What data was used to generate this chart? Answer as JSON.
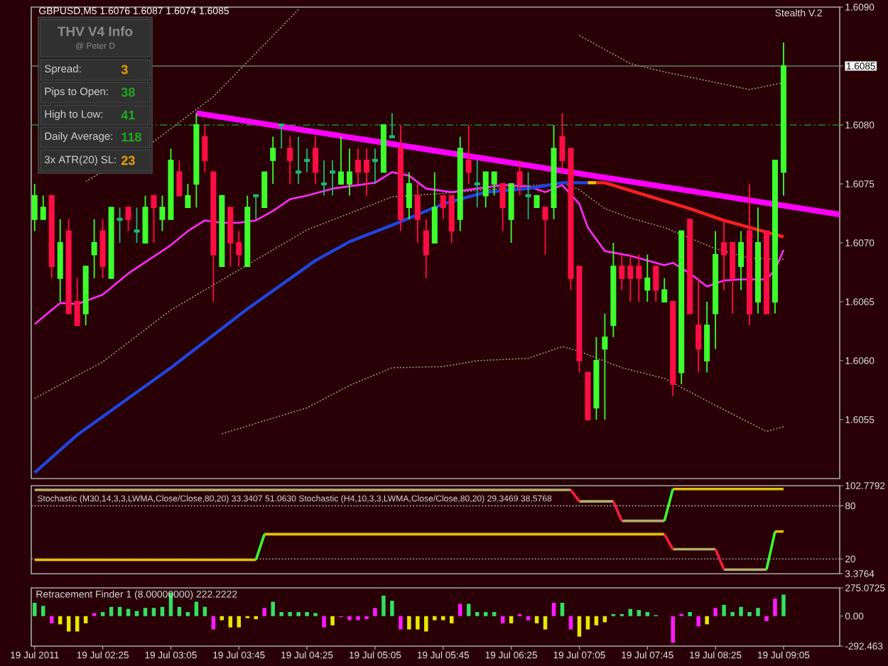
{
  "chart_data": [
    {
      "type": "candlestick",
      "title": "GBPUSD,M5 1.6076 1.6087 1.6074 1.6085",
      "x": [
        "2011-07-19T01:45",
        "2011-07-19T01:50",
        "2011-07-19T01:55",
        "2011-07-19T02:00",
        "2011-07-19T02:05",
        "2011-07-19T02:10",
        "2011-07-19T02:15",
        "2011-07-19T02:20",
        "2011-07-19T02:25",
        "2011-07-19T02:30",
        "2011-07-19T02:35",
        "2011-07-19T02:40",
        "2011-07-19T02:45",
        "2011-07-19T02:50",
        "2011-07-19T02:55",
        "2011-07-19T03:00",
        "2011-07-19T03:05",
        "2011-07-19T03:10",
        "2011-07-19T03:15",
        "2011-07-19T03:20",
        "2011-07-19T03:25",
        "2011-07-19T03:30",
        "2011-07-19T03:35",
        "2011-07-19T03:40",
        "2011-07-19T03:45",
        "2011-07-19T03:50",
        "2011-07-19T03:55",
        "2011-07-19T04:00",
        "2011-07-19T04:05",
        "2011-07-19T04:10",
        "2011-07-19T04:15",
        "2011-07-19T04:20",
        "2011-07-19T04:25",
        "2011-07-19T04:30",
        "2011-07-19T04:35",
        "2011-07-19T04:40",
        "2011-07-19T04:45",
        "2011-07-19T04:50",
        "2011-07-19T04:55",
        "2011-07-19T05:00",
        "2011-07-19T05:05",
        "2011-07-19T05:10",
        "2011-07-19T05:15",
        "2011-07-19T05:20",
        "2011-07-19T05:25",
        "2011-07-19T05:30",
        "2011-07-19T05:35",
        "2011-07-19T05:40",
        "2011-07-19T05:45",
        "2011-07-19T05:50",
        "2011-07-19T05:55",
        "2011-07-19T06:00",
        "2011-07-19T06:05",
        "2011-07-19T06:10",
        "2011-07-19T06:15",
        "2011-07-19T06:20",
        "2011-07-19T06:25",
        "2011-07-19T06:30",
        "2011-07-19T06:35",
        "2011-07-19T06:40",
        "2011-07-19T06:45",
        "2011-07-19T06:50",
        "2011-07-19T06:55",
        "2011-07-19T07:00",
        "2011-07-19T07:05",
        "2011-07-19T07:10",
        "2011-07-19T07:15",
        "2011-07-19T07:20",
        "2011-07-19T07:25",
        "2011-07-19T07:30",
        "2011-07-19T07:35",
        "2011-07-19T07:40",
        "2011-07-19T07:45",
        "2011-07-19T07:50",
        "2011-07-19T07:55",
        "2011-07-19T08:00",
        "2011-07-19T08:05",
        "2011-07-19T08:10",
        "2011-07-19T08:15",
        "2011-07-19T08:20",
        "2011-07-19T08:25",
        "2011-07-19T08:30",
        "2011-07-19T08:35",
        "2011-07-19T08:40",
        "2011-07-19T08:45",
        "2011-07-19T08:50",
        "2011-07-19T08:55",
        "2011-07-19T09:00",
        "2011-07-19T09:05"
      ],
      "ohlc": [
        [
          1.6072,
          1.6075,
          1.6071,
          1.6074
        ],
        [
          1.6072,
          1.6074,
          1.6072,
          1.6073
        ],
        [
          1.6074,
          1.6074,
          1.6067,
          1.6068
        ],
        [
          1.6067,
          1.6072,
          1.6065,
          1.607
        ],
        [
          1.6071,
          1.6072,
          1.6064,
          1.6064
        ],
        [
          1.6065,
          1.6067,
          1.6063,
          1.6063
        ],
        [
          1.6064,
          1.6068,
          1.6063,
          1.6068
        ],
        [
          1.6069,
          1.6072,
          1.6067,
          1.607
        ],
        [
          1.6071,
          1.6072,
          1.6067,
          1.6068
        ],
        [
          1.6067,
          1.6073,
          1.6067,
          1.6073
        ],
        [
          1.6072,
          1.6073,
          1.607,
          1.6072
        ],
        [
          1.6073,
          1.6073,
          1.6071,
          1.6072
        ],
        [
          1.6071,
          1.6073,
          1.607,
          1.6071
        ],
        [
          1.607,
          1.6074,
          1.607,
          1.6073
        ],
        [
          1.6074,
          1.6074,
          1.607,
          1.6073
        ],
        [
          1.6072,
          1.6074,
          1.6071,
          1.6073
        ],
        [
          1.6072,
          1.6078,
          1.6072,
          1.6077
        ],
        [
          1.6076,
          1.6077,
          1.6074,
          1.6074
        ],
        [
          1.6073,
          1.6075,
          1.6073,
          1.6074
        ],
        [
          1.6075,
          1.6081,
          1.6073,
          1.608
        ],
        [
          1.6079,
          1.608,
          1.6076,
          1.6077
        ],
        [
          1.6076,
          1.6076,
          1.6065,
          1.6069
        ],
        [
          1.6068,
          1.6074,
          1.6068,
          1.6074
        ],
        [
          1.6073,
          1.6073,
          1.6068,
          1.607
        ],
        [
          1.607,
          1.6071,
          1.6068,
          1.6069
        ],
        [
          1.6068,
          1.6074,
          1.6068,
          1.6073
        ],
        [
          1.6074,
          1.6074,
          1.6072,
          1.6074
        ],
        [
          1.6073,
          1.6076,
          1.6073,
          1.6076
        ],
        [
          1.6077,
          1.6079,
          1.6075,
          1.6078
        ],
        [
          1.608,
          1.608,
          1.6078,
          1.608
        ],
        [
          1.6078,
          1.6079,
          1.6075,
          1.6077
        ],
        [
          1.6076,
          1.6079,
          1.6075,
          1.6076
        ],
        [
          1.6077,
          1.6078,
          1.6076,
          1.6077
        ],
        [
          1.6078,
          1.6079,
          1.6075,
          1.6076
        ],
        [
          1.6075,
          1.6077,
          1.6074,
          1.6075
        ],
        [
          1.6076,
          1.6077,
          1.6074,
          1.6076
        ],
        [
          1.6075,
          1.6079,
          1.6075,
          1.6076
        ],
        [
          1.6075,
          1.6078,
          1.6074,
          1.6076
        ],
        [
          1.6077,
          1.6078,
          1.6075,
          1.6076
        ],
        [
          1.6077,
          1.6078,
          1.6074,
          1.6076
        ],
        [
          1.6077,
          1.6078,
          1.6075,
          1.6077
        ],
        [
          1.6076,
          1.608,
          1.6076,
          1.608
        ],
        [
          1.6079,
          1.6081,
          1.6079,
          1.6079
        ],
        [
          1.6078,
          1.608,
          1.6071,
          1.6072
        ],
        [
          1.6073,
          1.6076,
          1.6072,
          1.6075
        ],
        [
          1.6074,
          1.6075,
          1.607,
          1.6072
        ],
        [
          1.6071,
          1.6072,
          1.6067,
          1.6069
        ],
        [
          1.607,
          1.6076,
          1.607,
          1.6073
        ],
        [
          1.6074,
          1.6074,
          1.6072,
          1.6073
        ],
        [
          1.6074,
          1.6074,
          1.607,
          1.6071
        ],
        [
          1.6072,
          1.6079,
          1.6071,
          1.6078
        ],
        [
          1.6077,
          1.608,
          1.6075,
          1.6076
        ],
        [
          1.6075,
          1.6077,
          1.6073,
          1.6075
        ],
        [
          1.6074,
          1.6076,
          1.6073,
          1.6076
        ],
        [
          1.6075,
          1.6076,
          1.6074,
          1.6076
        ],
        [
          1.6075,
          1.6075,
          1.6071,
          1.6073
        ],
        [
          1.6072,
          1.6075,
          1.607,
          1.6075
        ],
        [
          1.6076,
          1.6077,
          1.6074,
          1.6075
        ],
        [
          1.6074,
          1.6076,
          1.6072,
          1.6074
        ],
        [
          1.6073,
          1.6074,
          1.6073,
          1.6074
        ],
        [
          1.6073,
          1.6073,
          1.6069,
          1.6072
        ],
        [
          1.6073,
          1.608,
          1.6072,
          1.6078
        ],
        [
          1.6079,
          1.6081,
          1.6076,
          1.6077
        ],
        [
          1.6078,
          1.6078,
          1.6066,
          1.6067
        ],
        [
          1.6068,
          1.6068,
          1.6059,
          1.606
        ],
        [
          1.6059,
          1.6059,
          1.6055,
          1.6055
        ],
        [
          1.6056,
          1.6062,
          1.6055,
          1.606
        ],
        [
          1.6061,
          1.6064,
          1.6055,
          1.6062
        ],
        [
          1.6063,
          1.607,
          1.6062,
          1.6068
        ],
        [
          1.6068,
          1.6069,
          1.6066,
          1.6067
        ],
        [
          1.6068,
          1.6069,
          1.6065,
          1.6067
        ],
        [
          1.6068,
          1.6069,
          1.6065,
          1.6067
        ],
        [
          1.6066,
          1.6069,
          1.6065,
          1.6067
        ],
        [
          1.6068,
          1.6068,
          1.6065,
          1.6066
        ],
        [
          1.6065,
          1.6067,
          1.6065,
          1.6066
        ],
        [
          1.6065,
          1.6065,
          1.6057,
          1.6058
        ],
        [
          1.6059,
          1.6071,
          1.6058,
          1.6071
        ],
        [
          1.6072,
          1.6072,
          1.6064,
          1.6064
        ],
        [
          1.6063,
          1.6067,
          1.6059,
          1.6061
        ],
        [
          1.606,
          1.6065,
          1.6059,
          1.6063
        ],
        [
          1.6064,
          1.6071,
          1.6061,
          1.6069
        ],
        [
          1.607,
          1.6072,
          1.6066,
          1.6069
        ],
        [
          1.607,
          1.607,
          1.6064,
          1.6067
        ],
        [
          1.6068,
          1.6071,
          1.6066,
          1.607
        ],
        [
          1.6071,
          1.6075,
          1.6063,
          1.6064
        ],
        [
          1.6065,
          1.6073,
          1.6064,
          1.607
        ],
        [
          1.6071,
          1.6071,
          1.6064,
          1.6064
        ],
        [
          1.6065,
          1.6077,
          1.6064,
          1.6077
        ],
        [
          1.6076,
          1.6087,
          1.6074,
          1.6085
        ]
      ],
      "colors": [
        "#3dff2e",
        "#3dff2e",
        "#ff0d45",
        "#3dff2e",
        "#ff0d45",
        "#ff0d45",
        "#3dff2e",
        "#3dff2e",
        "#ff0d45",
        "#3dff2e",
        "#1fb873",
        "#ff0d45",
        "#1fb873",
        "#3dff2e",
        "#ff0d45",
        "#3dff2e",
        "#3dff2e",
        "#ff0d45",
        "#3dff2e",
        "#3dff2e",
        "#ff0d45",
        "#ff0d45",
        "#3dff2e",
        "#ff0d45",
        "#ff0d45",
        "#3dff2e",
        "#1fb873",
        "#3dff2e",
        "#3dff2e",
        "#1fb873",
        "#ff0d45",
        "#1fb873",
        "#1fb873",
        "#ff0d45",
        "#1fb873",
        "#1fb873",
        "#3dff2e",
        "#3dff2e",
        "#ff0d45",
        "#ff0d45",
        "#1fb873",
        "#3dff2e",
        "#1fb873",
        "#ff0d45",
        "#3dff2e",
        "#ff0d45",
        "#ff0d45",
        "#3dff2e",
        "#ff0d45",
        "#ff0d45",
        "#3dff2e",
        "#ff0d45",
        "#1fb873",
        "#3dff2e",
        "#3dff2e",
        "#ff0d45",
        "#3dff2e",
        "#ff0d45",
        "#1fb873",
        "#3dff2e",
        "#ff0d45",
        "#3dff2e",
        "#ff0d45",
        "#ff0d45",
        "#ff0d45",
        "#ff0d45",
        "#3dff2e",
        "#3dff2e",
        "#3dff2e",
        "#ff0d45",
        "#ff0d45",
        "#ff0d45",
        "#3dff2e",
        "#ff0d45",
        "#3dff2e",
        "#ff0d45",
        "#3dff2e",
        "#ff0d45",
        "#ff0d45",
        "#3dff2e",
        "#3dff2e",
        "#ff0d45",
        "#ff0d45",
        "#3dff2e",
        "#ff0d45",
        "#3dff2e",
        "#ff0d45",
        "#3dff2e",
        "#3dff2e"
      ],
      "series": [
        {
          "type": "line",
          "color": "#9c9c6c",
          "line_style": "dotted",
          "x": [
            "2011-07-19T02:15",
            "2011-07-19T02:55",
            "2011-07-19T03:30",
            "2011-07-19T03:55",
            "2011-07-19T04:20"
          ],
          "values": [
            1.60752,
            1.60786,
            1.60824,
            1.60861,
            1.60898
          ]
        },
        {
          "type": "line",
          "color": "#9c9c6c",
          "line_style": "dotted",
          "x": [
            "2011-07-19T07:05",
            "2011-07-19T07:20",
            "2011-07-19T07:35",
            "2011-07-19T07:55",
            "2011-07-19T08:25",
            "2011-07-19T08:45",
            "2011-07-19T09:05"
          ],
          "values": [
            1.60876,
            1.60864,
            1.60852,
            1.60845,
            1.60836,
            1.6083,
            1.60836
          ]
        },
        {
          "type": "line",
          "color": "#9c9c6c",
          "line_style": "dotted",
          "x": [
            "2011-07-19T01:45",
            "2011-07-19T02:25",
            "2011-07-19T03:05",
            "2011-07-19T04:25",
            "2011-07-19T04:50",
            "2011-07-19T05:15",
            "2011-07-19T05:45",
            "2011-07-19T06:10",
            "2011-07-19T06:35",
            "2011-07-19T06:55",
            "2011-07-19T07:05",
            "2011-07-19T07:20",
            "2011-07-19T07:35",
            "2011-07-19T07:55",
            "2011-07-19T08:25",
            "2011-07-19T08:45",
            "2011-07-19T09:05"
          ],
          "values": [
            1.60568,
            1.60599,
            1.60643,
            1.60711,
            1.60725,
            1.60739,
            1.60742,
            1.60745,
            1.60748,
            1.60751,
            1.60745,
            1.60729,
            1.60721,
            1.60713,
            1.60695,
            1.60687,
            1.60686
          ]
        },
        {
          "type": "line",
          "color": "#9c9c6c",
          "line_style": "dotted",
          "x": [
            "2011-07-19T03:35",
            "2011-07-19T04:25",
            "2011-07-19T04:50",
            "2011-07-19T05:15",
            "2011-07-19T05:45",
            "2011-07-19T06:05",
            "2011-07-19T06:35",
            "2011-07-19T06:55",
            "2011-07-19T07:05",
            "2011-07-19T07:30",
            "2011-07-19T07:55",
            "2011-07-19T08:25",
            "2011-07-19T08:55",
            "2011-07-19T09:05"
          ],
          "values": [
            1.60538,
            1.6056,
            1.60579,
            1.60594,
            1.60595,
            1.606,
            1.60602,
            1.60612,
            1.60608,
            1.60594,
            1.60585,
            1.60562,
            1.6054,
            1.60544
          ]
        },
        {
          "type": "line",
          "color": "#ff2bff",
          "x": [
            "2011-07-19T01:45",
            "2011-07-19T02:00",
            "2011-07-19T02:10",
            "2011-07-19T02:25",
            "2011-07-19T02:40",
            "2011-07-19T03:05",
            "2011-07-19T03:15",
            "2011-07-19T03:25",
            "2011-07-19T03:35",
            "2011-07-19T03:45",
            "2011-07-19T03:55",
            "2011-07-19T04:05",
            "2011-07-19T04:15",
            "2011-07-19T04:25",
            "2011-07-19T04:40",
            "2011-07-19T05:05",
            "2011-07-19T05:15",
            "2011-07-19T05:25",
            "2011-07-19T05:35",
            "2011-07-19T05:50",
            "2011-07-19T06:05",
            "2011-07-19T06:20",
            "2011-07-19T06:35",
            "2011-07-19T06:45",
            "2011-07-19T06:55",
            "2011-07-19T07:05",
            "2011-07-19T07:10",
            "2011-07-19T07:20",
            "2011-07-19T07:35",
            "2011-07-19T07:55",
            "2011-07-19T08:00",
            "2011-07-19T08:10",
            "2011-07-19T08:20",
            "2011-07-19T08:30",
            "2011-07-19T08:40",
            "2011-07-19T08:55",
            "2011-07-19T09:00",
            "2011-07-19T09:05"
          ],
          "values": [
            1.60631,
            1.60649,
            1.60648,
            1.60656,
            1.60674,
            1.60698,
            1.6071,
            1.60719,
            1.60717,
            1.60717,
            1.60719,
            1.60727,
            1.60737,
            1.6074,
            1.60746,
            1.60751,
            1.6076,
            1.60757,
            1.60746,
            1.60743,
            1.60746,
            1.60749,
            1.60748,
            1.60743,
            1.60749,
            1.60733,
            1.60713,
            1.60693,
            1.60689,
            1.60681,
            1.60683,
            1.60674,
            1.60663,
            1.60668,
            1.60669,
            1.60669,
            1.60677,
            1.60694
          ]
        },
        {
          "type": "line",
          "color": "#2244dd",
          "x": [
            "2011-07-19T01:45",
            "2011-07-19T02:10",
            "2011-07-19T03:05",
            "2011-07-19T03:50",
            "2011-07-19T04:30",
            "2011-07-19T04:50",
            "2011-07-19T05:15",
            "2011-07-19T05:45",
            "2011-07-19T06:10",
            "2011-07-19T06:35",
            "2011-07-19T06:55",
            "2011-07-19T07:10"
          ],
          "values": [
            1.60505,
            1.60537,
            1.60594,
            1.60644,
            1.60685,
            1.60701,
            1.60715,
            1.60733,
            1.60743,
            1.60746,
            1.60751,
            1.60751
          ]
        },
        {
          "type": "line",
          "color": "#ffc000",
          "x": [
            "2011-07-19T07:10",
            "2011-07-19T07:15"
          ],
          "values": [
            1.60751,
            1.60751
          ]
        },
        {
          "type": "line",
          "color": "#ff1f1f",
          "x": [
            "2011-07-19T07:15",
            "2011-07-19T07:20",
            "2011-07-19T07:45",
            "2011-07-19T08:10",
            "2011-07-19T08:30",
            "2011-07-19T08:50",
            "2011-07-19T09:05"
          ],
          "values": [
            1.60751,
            1.60751,
            1.6074,
            1.60729,
            1.60719,
            1.60711,
            1.60705
          ]
        },
        {
          "type": "line",
          "color": "#ff00ff",
          "x": [
            "2011-07-19T03:20",
            "2011-07-19T09:38"
          ],
          "values": [
            1.6081,
            1.60724
          ]
        }
      ],
      "ref_lines": [
        {
          "axis": "y",
          "value": 1.6085,
          "color": "#6b7b6b"
        },
        {
          "axis": "y",
          "value": 1.608,
          "color": "#1f8a1f",
          "line_style": "dashed"
        }
      ],
      "annotations": [
        "THV V4 Info",
        "@ Peter D",
        "Spread:",
        "3",
        "Pips to Open:",
        "38",
        "High to Low:",
        "41",
        "Daily Average:",
        "118",
        "3x ATR(20) SL:",
        "23",
        "Stealth V.2"
      ],
      "xlim": [
        "2011-07-19T01:43",
        "2011-07-19T09:38"
      ],
      "ylim": [
        1.605,
        1.609
      ],
      "yticks": [
        {
          "value": 1.609,
          "label": "1.6090"
        },
        1.6085,
        {
          "value": 1.608,
          "label": "1.6080"
        },
        1.6075,
        {
          "value": 1.607,
          "label": "1.6070"
        },
        1.6065,
        {
          "value": 1.606,
          "label": "1.6060"
        },
        1.6055
      ],
      "tick_labels": "y"
    },
    {
      "type": "line",
      "title": "Stochastic (M30,14,3,3,LWMA,Close/Close,80,20) 33.3407 51.0630  Stochastic (H4,10,3,3,LWMA,Close/Close,80,20) 29.3469 38.5768",
      "series": [
        {
          "type": "line",
          "color": "#e8c000",
          "x": [
            "2011-07-19T01:45",
            "2011-07-19T03:55"
          ],
          "values": [
            19,
            19
          ]
        },
        {
          "type": "line",
          "color": "#e8c000",
          "x": [
            "2011-07-19T04:00",
            "2011-07-19T07:55"
          ],
          "values": [
            48,
            48
          ]
        },
        {
          "type": "line",
          "color": "#e8c000",
          "x": [
            "2011-07-19T08:00",
            "2011-07-19T09:05"
          ],
          "values": [
            99,
            99
          ]
        },
        {
          "type": "line",
          "color": "#e8c000",
          "x": [
            "2011-07-19T09:00",
            "2011-07-19T09:05"
          ],
          "values": [
            51,
            51
          ]
        },
        {
          "type": "line",
          "color": "#b4ac6a",
          "x": [
            "2011-07-19T01:45",
            "2011-07-19T07:00"
          ],
          "values": [
            98,
            98
          ]
        },
        {
          "type": "line",
          "color": "#b4ac6a",
          "x": [
            "2011-07-19T07:05",
            "2011-07-19T07:25"
          ],
          "values": [
            85,
            85
          ]
        },
        {
          "type": "line",
          "color": "#b4ac6a",
          "x": [
            "2011-07-19T07:30",
            "2011-07-19T07:55"
          ],
          "values": [
            63,
            63
          ]
        },
        {
          "type": "line",
          "color": "#b4ac6a",
          "x": [
            "2011-07-19T08:00",
            "2011-07-19T08:25"
          ],
          "values": [
            31,
            31
          ]
        },
        {
          "type": "line",
          "color": "#b4ac6a",
          "x": [
            "2011-07-19T08:30",
            "2011-07-19T08:55"
          ],
          "values": [
            8,
            8
          ]
        },
        {
          "type": "line",
          "color": "#3dff2e",
          "x": [
            "2011-07-19T03:55",
            "2011-07-19T04:00"
          ],
          "values": [
            19,
            48
          ]
        },
        {
          "type": "line",
          "color": "#3dff2e",
          "x": [
            "2011-07-19T07:55",
            "2011-07-19T08:00"
          ],
          "values": [
            63,
            99
          ]
        },
        {
          "type": "line",
          "color": "#3dff2e",
          "x": [
            "2011-07-19T08:55",
            "2011-07-19T09:00"
          ],
          "values": [
            8,
            51
          ]
        },
        {
          "type": "line",
          "color": "#ff1a40",
          "x": [
            "2011-07-19T07:00",
            "2011-07-19T07:05"
          ],
          "values": [
            98,
            85
          ]
        },
        {
          "type": "line",
          "color": "#ff1a40",
          "x": [
            "2011-07-19T07:25",
            "2011-07-19T07:30"
          ],
          "values": [
            85,
            63
          ]
        },
        {
          "type": "line",
          "color": "#ff1a40",
          "x": [
            "2011-07-19T07:55",
            "2011-07-19T08:00"
          ],
          "values": [
            48,
            31
          ]
        },
        {
          "type": "line",
          "color": "#ff1a40",
          "x": [
            "2011-07-19T08:25",
            "2011-07-19T08:30"
          ],
          "values": [
            31,
            8
          ]
        }
      ],
      "ref_lines": [
        {
          "axis": "y",
          "value": 80,
          "color": "#9a9a9a",
          "line_style": "dotted"
        },
        {
          "axis": "y",
          "value": 20,
          "color": "#9a9a9a",
          "line_style": "dotted"
        }
      ],
      "xlim": [
        "2011-07-19T01:43",
        "2011-07-19T09:38"
      ],
      "ylim": [
        3.3764,
        102.7792
      ],
      "yticks": [
        102.7792,
        80,
        20,
        3.3764
      ],
      "tick_labels": "y"
    },
    {
      "type": "bar",
      "title": "Retracement Finder 1 (8.00000000) 222.2222",
      "x": [
        "2011-07-19T01:45",
        "2011-07-19T01:50",
        "2011-07-19T01:55",
        "2011-07-19T02:00",
        "2011-07-19T02:05",
        "2011-07-19T02:10",
        "2011-07-19T02:15",
        "2011-07-19T02:20",
        "2011-07-19T02:25",
        "2011-07-19T02:30",
        "2011-07-19T02:35",
        "2011-07-19T02:40",
        "2011-07-19T02:45",
        "2011-07-19T02:50",
        "2011-07-19T02:55",
        "2011-07-19T03:00",
        "2011-07-19T03:05",
        "2011-07-19T03:10",
        "2011-07-19T03:15",
        "2011-07-19T03:20",
        "2011-07-19T03:25",
        "2011-07-19T03:30",
        "2011-07-19T03:35",
        "2011-07-19T03:40",
        "2011-07-19T03:45",
        "2011-07-19T03:50",
        "2011-07-19T03:55",
        "2011-07-19T04:00",
        "2011-07-19T04:05",
        "2011-07-19T04:10",
        "2011-07-19T04:15",
        "2011-07-19T04:20",
        "2011-07-19T04:25",
        "2011-07-19T04:30",
        "2011-07-19T04:35",
        "2011-07-19T04:40",
        "2011-07-19T04:45",
        "2011-07-19T04:50",
        "2011-07-19T04:55",
        "2011-07-19T05:00",
        "2011-07-19T05:05",
        "2011-07-19T05:10",
        "2011-07-19T05:15",
        "2011-07-19T05:20",
        "2011-07-19T05:25",
        "2011-07-19T05:30",
        "2011-07-19T05:35",
        "2011-07-19T05:40",
        "2011-07-19T05:45",
        "2011-07-19T05:50",
        "2011-07-19T05:55",
        "2011-07-19T06:00",
        "2011-07-19T06:05",
        "2011-07-19T06:10",
        "2011-07-19T06:15",
        "2011-07-19T06:20",
        "2011-07-19T06:25",
        "2011-07-19T06:30",
        "2011-07-19T06:35",
        "2011-07-19T06:40",
        "2011-07-19T06:45",
        "2011-07-19T06:50",
        "2011-07-19T06:55",
        "2011-07-19T07:00",
        "2011-07-19T07:05",
        "2011-07-19T07:10",
        "2011-07-19T07:15",
        "2011-07-19T07:20",
        "2011-07-19T07:25",
        "2011-07-19T07:30",
        "2011-07-19T07:35",
        "2011-07-19T07:40",
        "2011-07-19T07:45",
        "2011-07-19T07:50",
        "2011-07-19T07:55",
        "2011-07-19T08:00",
        "2011-07-19T08:05",
        "2011-07-19T08:10",
        "2011-07-19T08:15",
        "2011-07-19T08:20",
        "2011-07-19T08:25",
        "2011-07-19T08:30",
        "2011-07-19T08:35",
        "2011-07-19T08:40",
        "2011-07-19T08:45",
        "2011-07-19T08:50",
        "2011-07-19T08:55",
        "2011-07-19T09:00",
        "2011-07-19T09:05"
      ],
      "values": [
        130,
        100,
        -70,
        -80,
        -150,
        -150,
        -70,
        30,
        40,
        90,
        90,
        70,
        50,
        80,
        80,
        90,
        230,
        90,
        40,
        140,
        90,
        -130,
        -40,
        -110,
        -110,
        -20,
        -30,
        80,
        140,
        40,
        40,
        40,
        40,
        30,
        -110,
        -90,
        -10,
        -40,
        -40,
        -30,
        80,
        200,
        150,
        -130,
        -130,
        -130,
        -150,
        -40,
        -40,
        -70,
        120,
        120,
        40,
        40,
        40,
        -70,
        -70,
        20,
        -40,
        -70,
        -130,
        130,
        130,
        -130,
        -200,
        -130,
        -90,
        -60,
        20,
        20,
        70,
        60,
        40,
        10,
        null,
        -260,
        20,
        40,
        -100,
        -80,
        80,
        110,
        40,
        90,
        40,
        80,
        -50,
        170,
        210
      ],
      "colors": [
        "#33e060",
        "#33e060",
        "#ff1aff",
        "#e8e800",
        "#e8e800",
        "#e8e800",
        "#e8e800",
        "#ff1aff",
        "#33e060",
        "#33e060",
        "#33e060",
        "#33e060",
        "#33e060",
        "#33e060",
        "#33e060",
        "#33e060",
        "#33e060",
        "#33e060",
        "#33e060",
        "#33e060",
        "#33e060",
        "#ff1aff",
        "#e8e800",
        "#e8e800",
        "#e8e800",
        "#e8e800",
        "#e8e800",
        "#ff1aff",
        "#33e060",
        "#33e060",
        "#33e060",
        "#33e060",
        "#33e060",
        "#33e060",
        "#ff1aff",
        "#e8e800",
        "#ff1aff",
        "#ff1aff",
        "#ff1aff",
        "#ff1aff",
        "#ff1aff",
        "#33e060",
        "#33e060",
        "#ff1aff",
        "#e8e800",
        "#e8e800",
        "#e8e800",
        "#e8e800",
        "#e8e800",
        "#e8e800",
        "#ff1aff",
        "#33e060",
        "#33e060",
        "#33e060",
        "#33e060",
        "#ff1aff",
        "#e8e800",
        "#ff1aff",
        "#ff1aff",
        "#e8e800",
        "#e8e800",
        "#ff1aff",
        "#33e060",
        "#ff1aff",
        "#e8e800",
        "#e8e800",
        "#e8e800",
        "#e8e800",
        "#33e060",
        "#33e060",
        "#33e060",
        "#33e060",
        "#33e060",
        "#33e060",
        "#33e060",
        "#ff1aff",
        "#ff1aff",
        "#33e060",
        "#ff1aff",
        "#e8e800",
        "#ff1aff",
        "#33e060",
        "#33e060",
        "#33e060",
        "#33e060",
        "#33e060",
        "#ff1aff",
        "#ff1aff",
        "#33e060"
      ],
      "xlim": [
        "2011-07-19T01:43",
        "2011-07-19T09:38"
      ],
      "ylim": [
        -292.463,
        275.0725
      ],
      "yticks": [
        275.0725,
        {
          "value": 0,
          "label": "0.00"
        },
        -292.463
      ],
      "xticks": [
        {
          "value": "2011-07-19T01:45",
          "label": "19 Jul 2011"
        },
        {
          "value": "2011-07-19T02:25",
          "label": "19 Jul 02:25"
        },
        {
          "value": "2011-07-19T03:05",
          "label": "19 Jul 03:05"
        },
        {
          "value": "2011-07-19T03:45",
          "label": "19 Jul 03:45"
        },
        {
          "value": "2011-07-19T04:25",
          "label": "19 Jul 04:25"
        },
        {
          "value": "2011-07-19T05:05",
          "label": "19 Jul 05:05"
        },
        {
          "value": "2011-07-19T05:45",
          "label": "19 Jul 05:45"
        },
        {
          "value": "2011-07-19T06:25",
          "label": "19 Jul 06:25"
        },
        {
          "value": "2011-07-19T07:05",
          "label": "19 Jul 07:05"
        },
        {
          "value": "2011-07-19T07:45",
          "label": "19 Jul 07:45"
        },
        {
          "value": "2011-07-19T08:25",
          "label": "19 Jul 08:25"
        },
        {
          "value": "2011-07-19T09:05",
          "label": "19 Jul 09:05"
        }
      ]
    }
  ]
}
